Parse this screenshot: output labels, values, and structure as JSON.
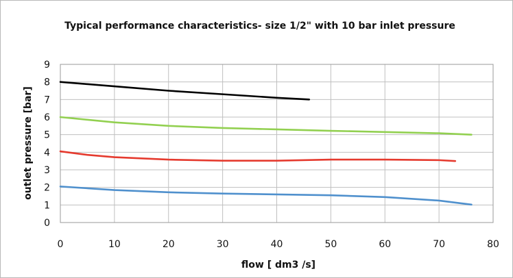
{
  "chart_data": {
    "type": "line",
    "title": "Typical  performance characteristics-  size 1/2\"  with 10 bar inlet pressure",
    "xlabel": "flow [ dm3 /s]",
    "ylabel": "outlet pressure [bar]",
    "xlim": [
      0,
      80
    ],
    "ylim": [
      0,
      9
    ],
    "x_ticks": [
      0,
      10,
      20,
      30,
      40,
      50,
      60,
      70,
      80
    ],
    "y_ticks": [
      0,
      1,
      2,
      3,
      4,
      5,
      6,
      7,
      8,
      9
    ],
    "grid": true,
    "legend": "none",
    "series": [
      {
        "color": "#000000",
        "points": [
          [
            0,
            8.0
          ],
          [
            10,
            7.75
          ],
          [
            20,
            7.5
          ],
          [
            30,
            7.3
          ],
          [
            40,
            7.1
          ],
          [
            46,
            7.0
          ]
        ]
      },
      {
        "color": "#92d050",
        "points": [
          [
            0,
            6.0
          ],
          [
            10,
            5.7
          ],
          [
            20,
            5.5
          ],
          [
            30,
            5.38
          ],
          [
            40,
            5.3
          ],
          [
            50,
            5.22
          ],
          [
            60,
            5.15
          ],
          [
            70,
            5.08
          ],
          [
            76,
            5.0
          ]
        ]
      },
      {
        "color": "#e53a2e",
        "points": [
          [
            0,
            4.05
          ],
          [
            5,
            3.85
          ],
          [
            10,
            3.72
          ],
          [
            20,
            3.58
          ],
          [
            30,
            3.52
          ],
          [
            40,
            3.52
          ],
          [
            50,
            3.58
          ],
          [
            60,
            3.58
          ],
          [
            70,
            3.55
          ],
          [
            73,
            3.5
          ]
        ]
      },
      {
        "color": "#4f90cd",
        "points": [
          [
            0,
            2.05
          ],
          [
            10,
            1.85
          ],
          [
            20,
            1.72
          ],
          [
            30,
            1.65
          ],
          [
            40,
            1.6
          ],
          [
            50,
            1.55
          ],
          [
            60,
            1.45
          ],
          [
            70,
            1.25
          ],
          [
            76,
            1.02
          ]
        ]
      }
    ]
  }
}
